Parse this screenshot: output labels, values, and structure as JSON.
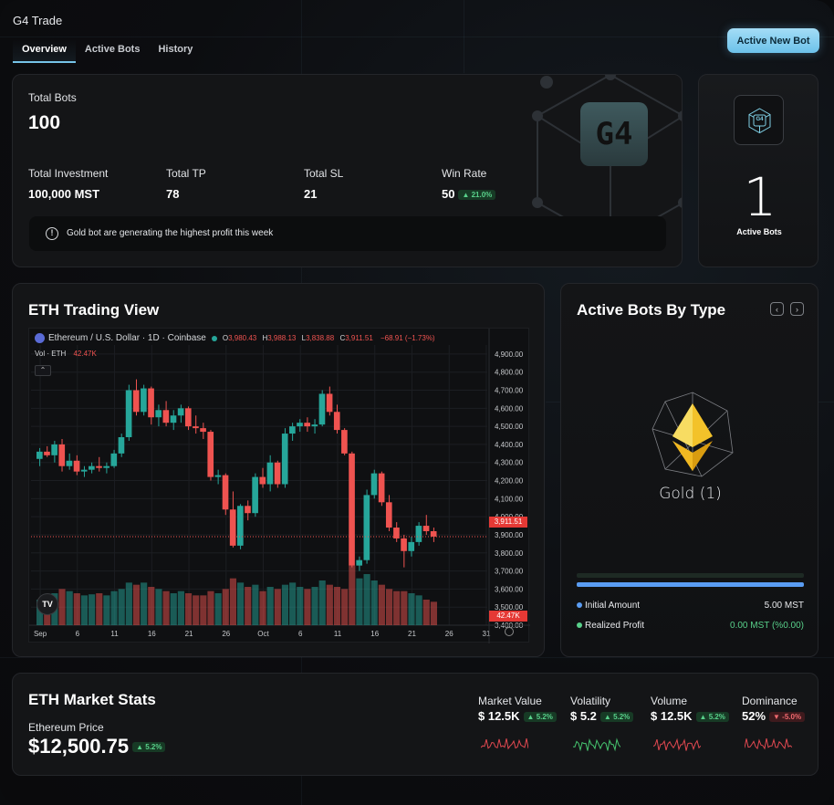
{
  "app": {
    "title": "G4 Trade",
    "tabs": [
      {
        "label": "Overview",
        "active": true
      },
      {
        "label": "Active Bots"
      },
      {
        "label": "History"
      }
    ],
    "new_bot_label": "Active New Bot"
  },
  "summary": {
    "total_bots_label": "Total Bots",
    "total_bots": "100",
    "logo_text": "G4",
    "stats": [
      {
        "label": "Total Investment",
        "value": "100,000 MST"
      },
      {
        "label": "Total TP",
        "value": "78"
      },
      {
        "label": "Total SL",
        "value": "21"
      },
      {
        "label": "Win Rate",
        "value": "50",
        "change": "▲ 21.0%"
      }
    ],
    "notice": "Gold bot are generating the highest profit this week"
  },
  "active_bots": {
    "count": "1",
    "label": "Active Bots",
    "logo_text": "G4"
  },
  "trading_view": {
    "title": "ETH Trading View",
    "symbol": "Ethereum / U.S. Dollar · 1D · Coinbase",
    "ohlc": {
      "o_label": "O",
      "o": "3,980.43",
      "h_label": "H",
      "h": "3,988.13",
      "l_label": "L",
      "l": "3,838.88",
      "c_label": "C",
      "c": "3,911.51",
      "chg": "−68.91 (−1.73%)"
    },
    "vol_label": "Vol · ETH",
    "vol_value": "42.47K",
    "price_tag": "3,911.51",
    "vol_tag": "42.47K",
    "logo_text": "TV",
    "colors": {
      "up": "#26a69a",
      "down": "#ef5350"
    }
  },
  "chart_data": {
    "type": "candlestick",
    "y_ticks": [
      "4,900.00",
      "4,800.00",
      "4,700.00",
      "4,600.00",
      "4,500.00",
      "4,400.00",
      "4,300.00",
      "4,200.00",
      "4,100.00",
      "4,000.00",
      "3,900.00",
      "3,800.00",
      "3,700.00",
      "3,600.00",
      "3,500.00",
      "3,400.00"
    ],
    "y_tick_values": [
      4900,
      4800,
      4700,
      4600,
      4500,
      4400,
      4300,
      4200,
      4100,
      4000,
      3900,
      3800,
      3700,
      3600,
      3500,
      3400
    ],
    "x_ticks": [
      {
        "label": "Sep",
        "day": 0
      },
      {
        "label": "6",
        "day": 5
      },
      {
        "label": "11",
        "day": 10
      },
      {
        "label": "16",
        "day": 15
      },
      {
        "label": "21",
        "day": 20
      },
      {
        "label": "26",
        "day": 25
      },
      {
        "label": "Oct",
        "day": 30
      },
      {
        "label": "6",
        "day": 35
      },
      {
        "label": "11",
        "day": 40
      },
      {
        "label": "16",
        "day": 45
      },
      {
        "label": "21",
        "day": 50
      },
      {
        "label": "26",
        "day": 55
      },
      {
        "label": "31",
        "day": 60
      }
    ],
    "ylim": [
      3400,
      4950
    ],
    "candles": [
      [
        4320,
        4380,
        4280,
        4360,
        120
      ],
      [
        4360,
        4390,
        4330,
        4340,
        130
      ],
      [
        4340,
        4420,
        4300,
        4400,
        150
      ],
      [
        4400,
        4430,
        4250,
        4280,
        170
      ],
      [
        4280,
        4350,
        4260,
        4310,
        160
      ],
      [
        4310,
        4340,
        4230,
        4250,
        150
      ],
      [
        4250,
        4280,
        4220,
        4260,
        140
      ],
      [
        4260,
        4300,
        4240,
        4280,
        145
      ],
      [
        4280,
        4330,
        4250,
        4270,
        150
      ],
      [
        4270,
        4300,
        4240,
        4280,
        140
      ],
      [
        4280,
        4370,
        4270,
        4350,
        160
      ],
      [
        4350,
        4460,
        4330,
        4440,
        170
      ],
      [
        4440,
        4730,
        4420,
        4700,
        200
      ],
      [
        4700,
        4760,
        4560,
        4580,
        190
      ],
      [
        4580,
        4730,
        4560,
        4710,
        200
      ],
      [
        4710,
        4720,
        4510,
        4550,
        180
      ],
      [
        4550,
        4620,
        4500,
        4590,
        170
      ],
      [
        4590,
        4640,
        4500,
        4520,
        160
      ],
      [
        4520,
        4590,
        4480,
        4560,
        150
      ],
      [
        4560,
        4620,
        4520,
        4600,
        160
      ],
      [
        4600,
        4610,
        4480,
        4500,
        150
      ],
      [
        4500,
        4560,
        4460,
        4490,
        140
      ],
      [
        4490,
        4520,
        4430,
        4470,
        140
      ],
      [
        4470,
        4480,
        4200,
        4220,
        160
      ],
      [
        4220,
        4260,
        4180,
        4230,
        150
      ],
      [
        4230,
        4240,
        4010,
        4040,
        170
      ],
      [
        4040,
        4140,
        3830,
        3840,
        220
      ],
      [
        3840,
        4070,
        3820,
        4060,
        200
      ],
      [
        4060,
        4090,
        3980,
        4020,
        180
      ],
      [
        4020,
        4240,
        4000,
        4220,
        190
      ],
      [
        4220,
        4270,
        4160,
        4180,
        160
      ],
      [
        4180,
        4340,
        4140,
        4300,
        180
      ],
      [
        4300,
        4310,
        4160,
        4180,
        170
      ],
      [
        4180,
        4490,
        4160,
        4460,
        190
      ],
      [
        4460,
        4520,
        4420,
        4500,
        200
      ],
      [
        4500,
        4540,
        4470,
        4520,
        180
      ],
      [
        4520,
        4550,
        4470,
        4500,
        170
      ],
      [
        4500,
        4540,
        4460,
        4510,
        180
      ],
      [
        4510,
        4700,
        4500,
        4680,
        210
      ],
      [
        4680,
        4720,
        4560,
        4580,
        190
      ],
      [
        4580,
        4620,
        4460,
        4480,
        180
      ],
      [
        4480,
        4490,
        4340,
        4350,
        170
      ],
      [
        4350,
        4360,
        3720,
        3730,
        280
      ],
      [
        3730,
        3780,
        3700,
        3760,
        220
      ],
      [
        3760,
        4150,
        3740,
        4120,
        240
      ],
      [
        4120,
        4260,
        4100,
        4240,
        210
      ],
      [
        4240,
        4250,
        4060,
        4080,
        190
      ],
      [
        4080,
        4120,
        3920,
        3940,
        170
      ],
      [
        3940,
        3970,
        3860,
        3880,
        160
      ],
      [
        3880,
        3900,
        3720,
        3810,
        160
      ],
      [
        3810,
        3890,
        3780,
        3860,
        150
      ],
      [
        3860,
        3970,
        3840,
        3950,
        140
      ],
      [
        3950,
        4010,
        3900,
        3920,
        120
      ],
      [
        3920,
        3940,
        3860,
        3890,
        110
      ]
    ],
    "vol_max": 300
  },
  "bots_by_type": {
    "title": "Active Bots By Type",
    "bot_name": "Gold (1)",
    "rows": [
      {
        "label": "Initial Amount",
        "value": "5.00 MST",
        "dot": "#5a9cf2"
      },
      {
        "label": "Realized Profit",
        "value": "0.00 MST (%0.00)",
        "dot": "#58d08a"
      }
    ]
  },
  "market": {
    "title": "ETH Market Stats",
    "price_label": "Ethereum Price",
    "price": "$12,500.75",
    "price_change": "▲ 5.2%",
    "stats": [
      {
        "label": "Market Value",
        "value": "$ 12.5K",
        "change": "▲ 5.2%",
        "dir": "up",
        "spark": "#e04850"
      },
      {
        "label": "Volatility",
        "value": "$ 5.2",
        "change": "▲ 5.2%",
        "dir": "up",
        "spark": "#45c46e"
      },
      {
        "label": "Volume",
        "value": "$ 12.5K",
        "change": "▲ 5.2%",
        "dir": "up",
        "spark": "#e04850"
      },
      {
        "label": "Dominance",
        "value": "52%",
        "change": "▼ -5.0%",
        "dir": "down",
        "spark": "#e04850"
      }
    ]
  }
}
